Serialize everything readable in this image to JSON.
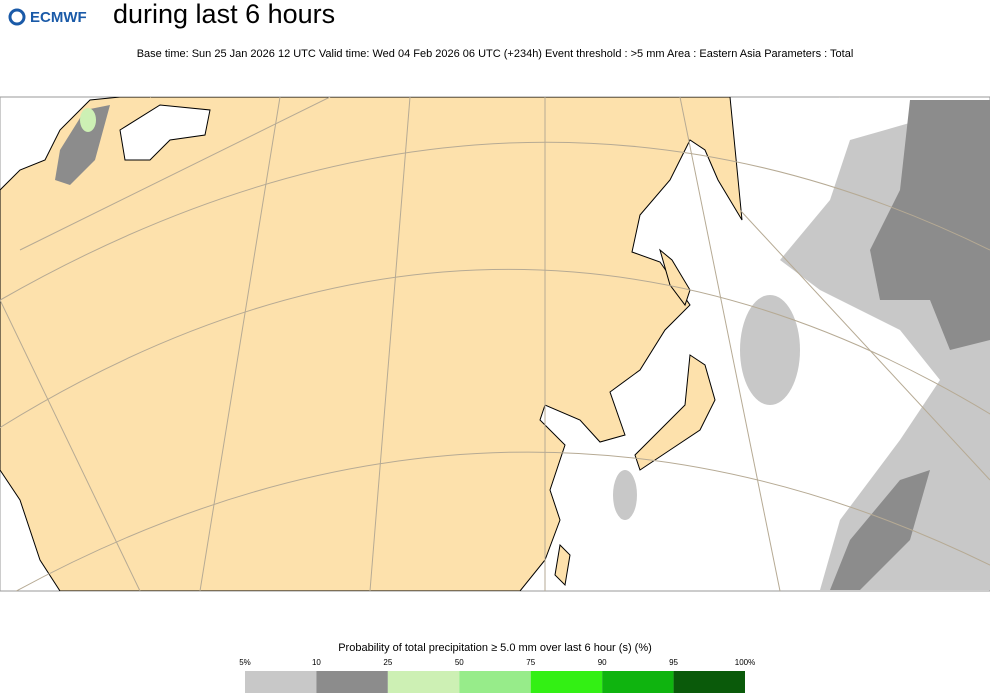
{
  "header": {
    "logo": "ECMWF",
    "title": "during last 6 hours",
    "subtitle": "Base time: Sun 25 Jan 2026 12 UTC Valid time: Wed 04 Feb 2026 06 UTC (+234h) Event threshold : >5 mm Area : Eastern Asia Parameters : Total"
  },
  "legend": {
    "title": "Probability of total precipitation ≥ 5.0 mm over last 6 hour (s) (%)",
    "ticks": [
      "5%",
      "10",
      "25",
      "50",
      "75",
      "90",
      "95",
      "100%"
    ],
    "colors": [
      "#c8c8c8",
      "#8c8c8c",
      "#cdf0b4",
      "#97ec8a",
      "#33f014",
      "#0fb40f",
      "#0a5a0a"
    ]
  }
}
